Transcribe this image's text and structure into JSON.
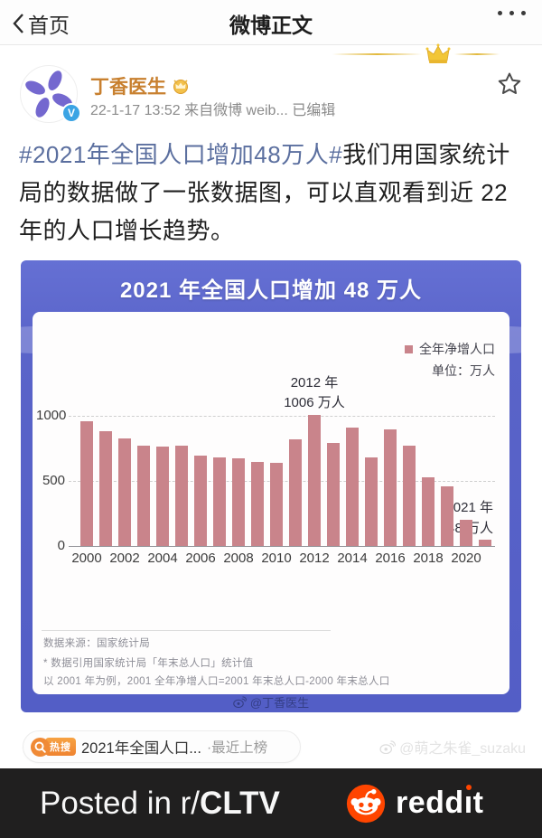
{
  "nav": {
    "back_label": "首页",
    "title": "微博正文"
  },
  "post": {
    "author": "丁香医生",
    "timestamp": "22-1-17 13:52",
    "source": "来自微博 weib...",
    "edited": "已编辑",
    "hashtag": "#2021年全国人口增加48万人#",
    "body": "我们用国家统计局的数据做了一张数据图，可以直观看到近 22 年的人口增长趋势。"
  },
  "chart_image": {
    "title": "2021 年全国人口增加 48 万人",
    "legend_label": "全年净增人口",
    "unit_label": "单位：万人",
    "peak_annotation_line1": "2012 年",
    "peak_annotation_line2": "1006 万人",
    "last_annotation_line1": "2021 年",
    "last_annotation_line2": "48 万人",
    "source_note": "数据来源：国家统计局",
    "note1": "* 数据引用国家统计局「年末总人口」统计值",
    "note2": "以 2001 年为例，2001 全年净增人口=2001 年末总人口-2000 年末总人口",
    "watermark": "@丁香医生"
  },
  "chart_data": {
    "type": "bar",
    "title": "2021 年全国人口增加 48 万人",
    "legend": [
      "全年净增人口"
    ],
    "unit": "万人",
    "x": [
      2000,
      2001,
      2002,
      2003,
      2004,
      2005,
      2006,
      2007,
      2008,
      2009,
      2010,
      2011,
      2012,
      2013,
      2014,
      2015,
      2016,
      2017,
      2018,
      2019,
      2020,
      2021
    ],
    "values": [
      957,
      884,
      826,
      774,
      761,
      768,
      692,
      681,
      673,
      646,
      641,
      820,
      1006,
      794,
      912,
      680,
      898,
      772,
      530,
      458,
      204,
      48
    ],
    "ylim": [
      0,
      1050
    ],
    "yticks": [
      0,
      500,
      1000
    ],
    "xticks": [
      2000,
      2002,
      2004,
      2006,
      2008,
      2010,
      2012,
      2014,
      2016,
      2018,
      2020
    ],
    "grid": "horizontal-dashed",
    "legend_position": "top-right",
    "bar_color": "#c9848b",
    "annotations": [
      {
        "x": 2012,
        "text": "2012 年 1006 万人"
      },
      {
        "x": 2021,
        "text": "2021 年 48 万人"
      }
    ]
  },
  "hot_search": {
    "badge": "热搜",
    "title": "2021年全国人口...",
    "suffix": "·最近上榜"
  },
  "page_watermark": "@萌之朱雀_suzaku",
  "footer": {
    "prefix": "Posted in r/",
    "subreddit": "CLTV",
    "brand": "reddit"
  },
  "colors": {
    "banner_blue": "#5a64c9",
    "bar_rose": "#c9848b",
    "hashtag_blue": "#5b6f9f",
    "author_orange": "#c8802f",
    "reddit_orange": "#ff4500",
    "footer_black": "#201f1f"
  }
}
